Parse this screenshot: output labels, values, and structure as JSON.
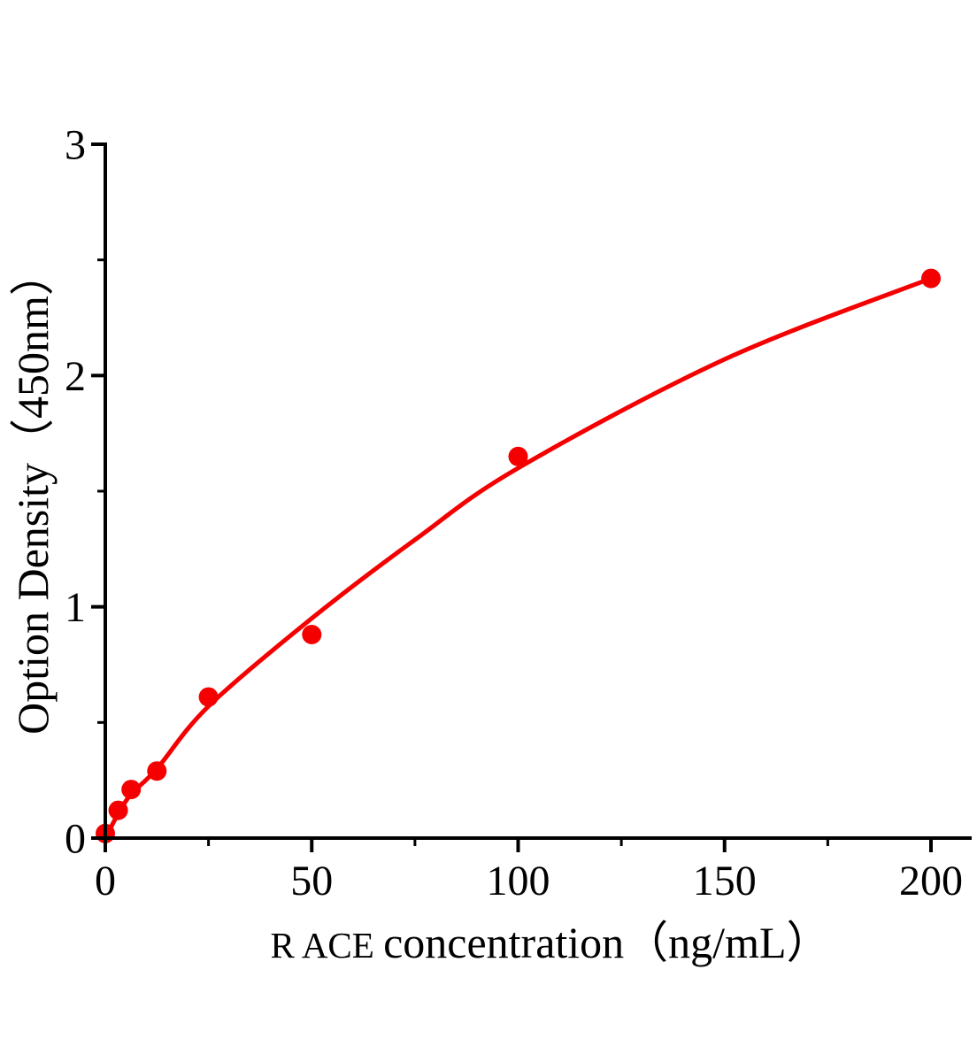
{
  "chart_data": {
    "type": "scatter",
    "title": "",
    "xlabel": "R ACE concentration（ng/mL）",
    "xlabel_small_prefix": "R ACE ",
    "xlabel_rest": "concentration（ng/mL）",
    "ylabel": "Option Density（450nm）",
    "x": [
      0,
      3.125,
      6.25,
      12.5,
      25,
      50,
      100,
      200
    ],
    "y": [
      0.02,
      0.12,
      0.21,
      0.29,
      0.61,
      0.88,
      1.65,
      2.42
    ],
    "fit_curve": [
      [
        0,
        0.0
      ],
      [
        3.125,
        0.105
      ],
      [
        6.25,
        0.19
      ],
      [
        12.5,
        0.3
      ],
      [
        25,
        0.57
      ],
      [
        50,
        0.95
      ],
      [
        75,
        1.29
      ],
      [
        100,
        1.6
      ],
      [
        150,
        2.07
      ],
      [
        200,
        2.42
      ]
    ],
    "xlim": [
      0,
      200
    ],
    "ylim": [
      0,
      3
    ],
    "x_ticks": {
      "major": [
        0,
        50,
        100,
        150,
        200
      ],
      "minor": [
        25,
        75,
        125,
        175
      ]
    },
    "y_ticks": {
      "major": [
        0,
        1,
        2,
        3
      ],
      "minor": [
        0.5,
        1.5,
        2.5
      ]
    },
    "x_tick_labels": [
      "0",
      "50",
      "100",
      "150",
      "200"
    ],
    "y_tick_labels": [
      "0",
      "1",
      "2",
      "3"
    ],
    "grid": false,
    "legend": null,
    "colors": {
      "series": "#f40000",
      "axis": "#000000",
      "background": "#ffffff"
    }
  }
}
